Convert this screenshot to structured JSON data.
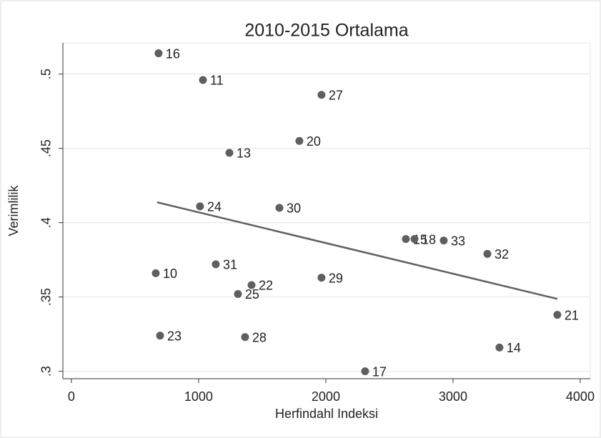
{
  "chart_data": {
    "type": "scatter",
    "title": "2010-2015 Ortalama",
    "x_label": "Herfindahl Indeksi",
    "y_label": "Verimlilik",
    "series": [
      {
        "color": "#5f5f5f",
        "labels": [
          "16",
          "11",
          "27",
          "20",
          "13",
          "24",
          "30",
          "15",
          "18",
          "33",
          "32",
          "10",
          "31",
          "22",
          "29",
          "25",
          "21",
          "23",
          "28",
          "14",
          "17"
        ],
        "x": [
          685,
          1034,
          1966,
          1792,
          1242,
          1011,
          1635,
          2629,
          2697,
          2927,
          3270,
          663,
          1135,
          1416,
          1966,
          1309,
          3820,
          697,
          1365,
          3365,
          2309
        ],
        "values": [
          0.514,
          0.496,
          0.486,
          0.455,
          0.447,
          0.411,
          0.41,
          0.389,
          0.389,
          0.388,
          0.379,
          0.366,
          0.372,
          0.358,
          0.363,
          0.352,
          0.338,
          0.324,
          0.323,
          0.316,
          0.3
        ]
      }
    ],
    "fit": {
      "color": "#5f5f5f",
      "x": [
        674,
        3820
      ],
      "values": [
        0.4137,
        0.3487
      ]
    },
    "xlim": [
      -67,
      4079
    ],
    "xticks": [
      0,
      1000,
      2000,
      3000,
      4000
    ],
    "ylim": [
      0.295,
      0.521
    ],
    "yticks": [
      {
        "value": 0.3,
        "label": ".3"
      },
      {
        "value": 0.35,
        "label": ".35"
      },
      {
        "value": 0.4,
        "label": ".4"
      },
      {
        "value": 0.45,
        "label": ".45"
      },
      {
        "value": 0.5,
        "label": ".5"
      }
    ],
    "grid": true
  }
}
